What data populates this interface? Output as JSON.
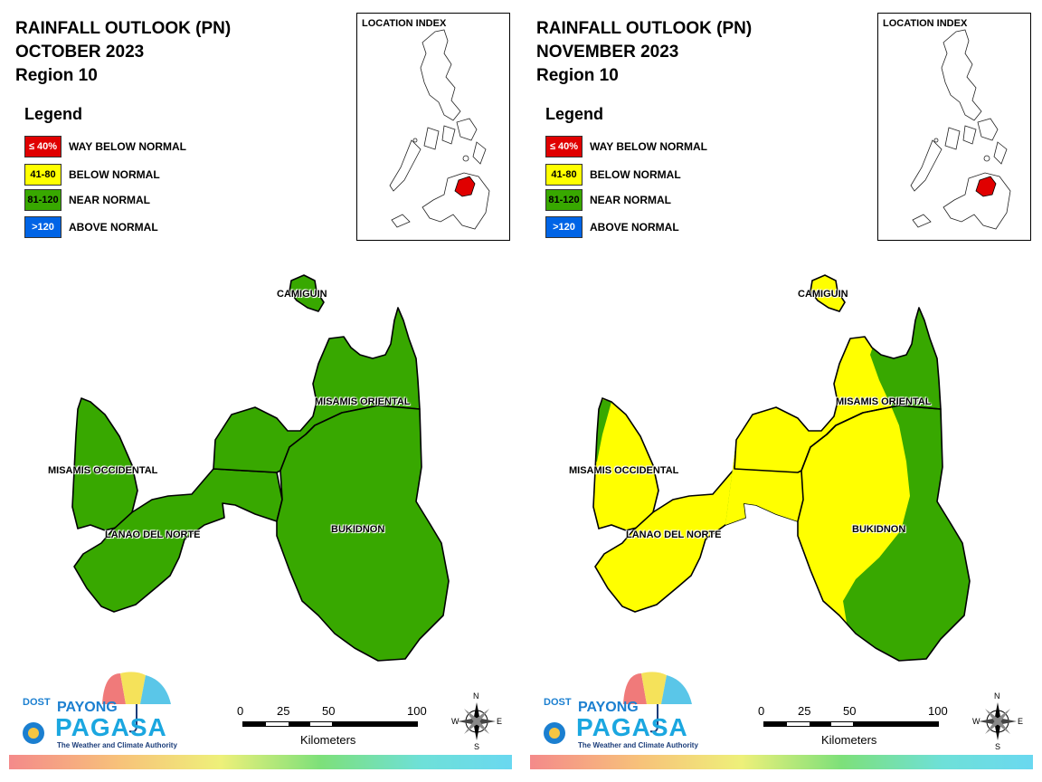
{
  "colors": {
    "way_below": "#e00000",
    "below": "#ffff00",
    "near": "#38a800",
    "above": "#0064e6",
    "boundary": "#000000"
  },
  "legend": {
    "title": "Legend",
    "items": [
      {
        "range": "≤ 40%",
        "label": "WAY BELOW NORMAL",
        "color": "#e00000",
        "text_color": "#ffffff"
      },
      {
        "range": "41-80",
        "label": "BELOW NORMAL",
        "color": "#ffff00",
        "text_color": "#000000"
      },
      {
        "range": "81-120",
        "label": "NEAR NORMAL",
        "color": "#38a800",
        "text_color": "#000000"
      },
      {
        "range": ">120",
        "label": "ABOVE NORMAL",
        "color": "#0064e6",
        "text_color": "#ffffff"
      }
    ]
  },
  "panels": [
    {
      "title_line1": "RAINFALL OUTLOOK (PN)",
      "title_line2": "OCTOBER 2023",
      "title_line3": "Region 10",
      "location_index_label": "LOCATION INDEX",
      "provinces": {
        "camiguin": {
          "name": "CAMIGUIN",
          "category": "NEAR NORMAL"
        },
        "misamis_oriental": {
          "name": "MISAMIS ORIENTAL",
          "category": "NEAR NORMAL"
        },
        "misamis_occidental": {
          "name": "MISAMIS OCCIDENTAL",
          "category": "NEAR NORMAL"
        },
        "lanao_del_norte": {
          "name": "LANAO DEL NORTE",
          "category": "NEAR NORMAL"
        },
        "bukidnon": {
          "name": "BUKIDNON",
          "category": "NEAR NORMAL"
        }
      }
    },
    {
      "title_line1": "RAINFALL OUTLOOK (PN)",
      "title_line2": "NOVEMBER 2023",
      "title_line3": "Region 10",
      "location_index_label": "LOCATION INDEX",
      "provinces": {
        "camiguin": {
          "name": "CAMIGUIN",
          "category": "BELOW NORMAL"
        },
        "misamis_oriental": {
          "name": "MISAMIS ORIENTAL",
          "category": "BELOW NORMAL (west) / NEAR NORMAL (east)"
        },
        "misamis_occidental": {
          "name": "MISAMIS OCCIDENTAL",
          "category": "BELOW NORMAL"
        },
        "lanao_del_norte": {
          "name": "LANAO DEL NORTE",
          "category": "BELOW NORMAL"
        },
        "bukidnon": {
          "name": "BUKIDNON",
          "category": "BELOW NORMAL (west) / NEAR NORMAL (east)"
        }
      }
    }
  ],
  "scale": {
    "ticks": [
      "0",
      "25",
      "50",
      "100"
    ],
    "units": "Kilometers"
  },
  "compass": {
    "n": "N",
    "s": "S",
    "e": "E",
    "w": "W"
  },
  "logo": {
    "dost": "DOST",
    "payong": "PAYONG",
    "pagasa": "PAGASA",
    "tagline": "The Weather and Climate Authority"
  }
}
